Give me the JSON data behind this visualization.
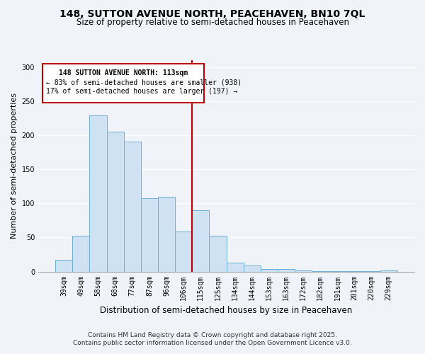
{
  "title": "148, SUTTON AVENUE NORTH, PEACEHAVEN, BN10 7QL",
  "subtitle": "Size of property relative to semi-detached houses in Peacehaven",
  "xlabel": "Distribution of semi-detached houses by size in Peacehaven",
  "ylabel": "Number of semi-detached properties",
  "bar_color": "#cfe2f3",
  "bar_edge_color": "#6baed6",
  "categories": [
    "39sqm",
    "49sqm",
    "58sqm",
    "68sqm",
    "77sqm",
    "87sqm",
    "96sqm",
    "106sqm",
    "115sqm",
    "125sqm",
    "134sqm",
    "144sqm",
    "153sqm",
    "163sqm",
    "172sqm",
    "182sqm",
    "191sqm",
    "201sqm",
    "220sqm",
    "229sqm"
  ],
  "values": [
    17,
    52,
    229,
    205,
    191,
    108,
    110,
    59,
    90,
    52,
    13,
    9,
    4,
    4,
    2,
    1,
    1,
    1,
    1,
    2
  ],
  "ylim": [
    0,
    310
  ],
  "yticks": [
    0,
    50,
    100,
    150,
    200,
    250,
    300
  ],
  "vline_x": 8,
  "vline_color": "#c00000",
  "annotation_line1": "148 SUTTON AVENUE NORTH: 113sqm",
  "annotation_line2": "← 83% of semi-detached houses are smaller (938)",
  "annotation_line3": "17% of semi-detached houses are larger (197) →",
  "annotation_box_color": "#c00000",
  "footer_line1": "Contains HM Land Registry data © Crown copyright and database right 2025.",
  "footer_line2": "Contains public sector information licensed under the Open Government Licence v3.0.",
  "background_color": "#f0f4f8",
  "grid_color": "#ffffff",
  "title_fontsize": 10,
  "subtitle_fontsize": 8.5,
  "xlabel_fontsize": 8.5,
  "ylabel_fontsize": 8,
  "tick_fontsize": 7,
  "footer_fontsize": 6.5
}
